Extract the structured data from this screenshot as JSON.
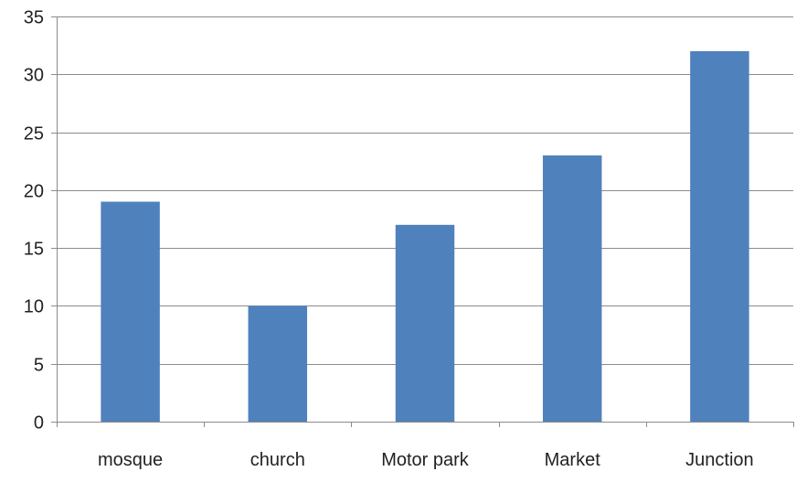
{
  "chart_data": {
    "type": "bar",
    "title": "",
    "xlabel": "",
    "ylabel": "",
    "categories": [
      "mosque",
      "church",
      "Motor park",
      "Market",
      "Junction"
    ],
    "values": [
      19,
      10,
      17,
      23,
      32
    ],
    "ylim": [
      0,
      35
    ],
    "yticks": [
      0,
      5,
      10,
      15,
      20,
      25,
      30,
      35
    ],
    "grid": true,
    "legend": "none",
    "colors": {
      "bar": "#4f81bd",
      "gridline": "#8c8c8c",
      "axis": "#8c8c8c"
    }
  }
}
